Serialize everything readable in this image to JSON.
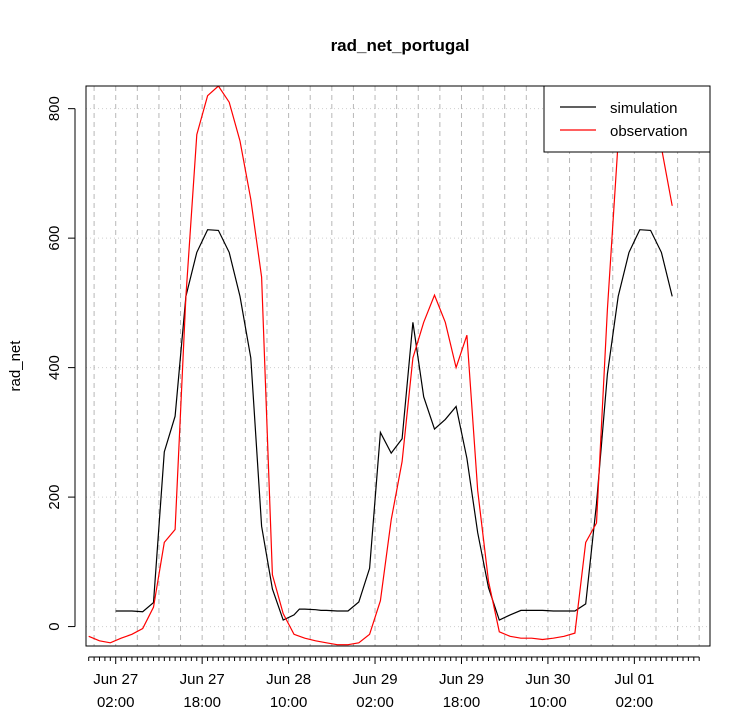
{
  "chart_data": {
    "type": "line",
    "title": "rad_net_portugal",
    "xlabel": "",
    "ylabel": "rad_net",
    "ylim": [
      -30,
      835
    ],
    "grid": true,
    "legend_position": "top-right",
    "y_ticks": [
      0,
      200,
      400,
      600,
      800
    ],
    "x_tick_labels": [
      {
        "x": 6,
        "line1": "Jun 27",
        "line2": "02:00"
      },
      {
        "x": 22,
        "line1": "Jun 27",
        "line2": "18:00"
      },
      {
        "x": 38,
        "line1": "Jun 28",
        "line2": "10:00"
      },
      {
        "x": 54,
        "line1": "Jun 29",
        "line2": "02:00"
      },
      {
        "x": 70,
        "line1": "Jun 29",
        "line2": "18:00"
      },
      {
        "x": 86,
        "line1": "Jun 30",
        "line2": "10:00"
      },
      {
        "x": 102,
        "line1": "Jul 01",
        "line2": "02:00"
      }
    ],
    "x_range": [
      0.5,
      116
    ],
    "series": [
      {
        "name": "simulation",
        "color": "#000000",
        "x": [
          6,
          9,
          11,
          13,
          15,
          17,
          19,
          21,
          23,
          25,
          27,
          29,
          31,
          33,
          35,
          37,
          39,
          40,
          41,
          43,
          44,
          45,
          47,
          49,
          51,
          53,
          55,
          57,
          59,
          61,
          63,
          65,
          67,
          69,
          71,
          73,
          75,
          77,
          79,
          81,
          83,
          85,
          87,
          89,
          91,
          93,
          95,
          97,
          99,
          101,
          103,
          105,
          107,
          109
        ],
        "values": [
          24,
          24,
          23,
          37,
          270,
          325,
          510,
          578,
          613,
          612,
          578,
          510,
          415,
          155,
          58,
          10,
          18,
          27,
          27,
          26,
          25,
          25,
          24,
          24,
          38,
          90,
          300,
          268,
          290,
          470,
          355,
          305,
          320,
          340,
          260,
          145,
          60,
          10,
          18,
          25,
          25,
          25,
          24,
          24,
          24,
          35,
          190,
          390,
          510,
          578,
          613,
          612,
          578,
          510
        ]
      },
      {
        "name": "observation",
        "color": "#ff0000",
        "x": [
          1,
          3,
          5,
          7,
          9,
          11,
          13,
          15,
          17,
          19,
          21,
          23,
          25,
          27,
          29,
          31,
          33,
          35,
          37,
          39,
          41,
          43,
          45,
          47,
          49,
          51,
          53,
          55,
          57,
          59,
          61,
          63,
          65,
          67,
          69,
          71,
          73,
          75,
          77,
          79,
          81,
          83,
          85,
          87,
          89,
          91,
          93,
          95,
          97,
          99,
          101,
          103,
          105,
          107,
          109
        ],
        "values": [
          -15,
          -22,
          -25,
          -18,
          -12,
          -3,
          30,
          130,
          150,
          510,
          760,
          820,
          835,
          810,
          750,
          660,
          540,
          80,
          20,
          -12,
          -18,
          -22,
          -25,
          -28,
          -28,
          -25,
          -12,
          40,
          165,
          255,
          415,
          470,
          512,
          470,
          400,
          450,
          210,
          70,
          -8,
          -15,
          -18,
          -18,
          -20,
          -18,
          -15,
          -10,
          130,
          160,
          490,
          750,
          830,
          835,
          805,
          740,
          650
        ]
      }
    ]
  }
}
